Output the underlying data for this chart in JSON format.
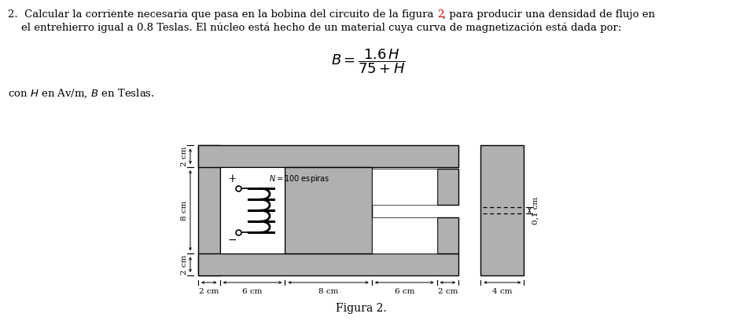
{
  "line1": "2.  Calcular la corriente necesaria que pasa en la bobina del circuito de la figura 2, para producir una densidad de flujo en",
  "line2": "    el entrehierro igual a 0.8 Teslas. El núcleo está hecho de un material cuya curva de magnetización está dada por:",
  "formula": "$B = \\dfrac{1.6\\,H}{75 + H}$",
  "con_text": "con $H$ en Av/m, $B$ en Teslas.",
  "figura_label": "Figura 2.",
  "n_label": "$N = 100$ espiras",
  "core_gray": "#b0b0b0",
  "background": "#ffffff",
  "red_color": "#cc0000",
  "dim_labels_bottom": [
    "2 cm",
    "6 cm",
    "8 cm",
    "6 cm",
    "2 cm"
  ],
  "dim_label_right": "4 cm",
  "dim_labels_left": [
    "2 cm",
    "8 cm",
    "2 cm"
  ],
  "dim_label_gap": "0,1 cm",
  "ann_fontsize": 7.5,
  "text_fontsize": 9.5,
  "formula_fontsize": 13
}
